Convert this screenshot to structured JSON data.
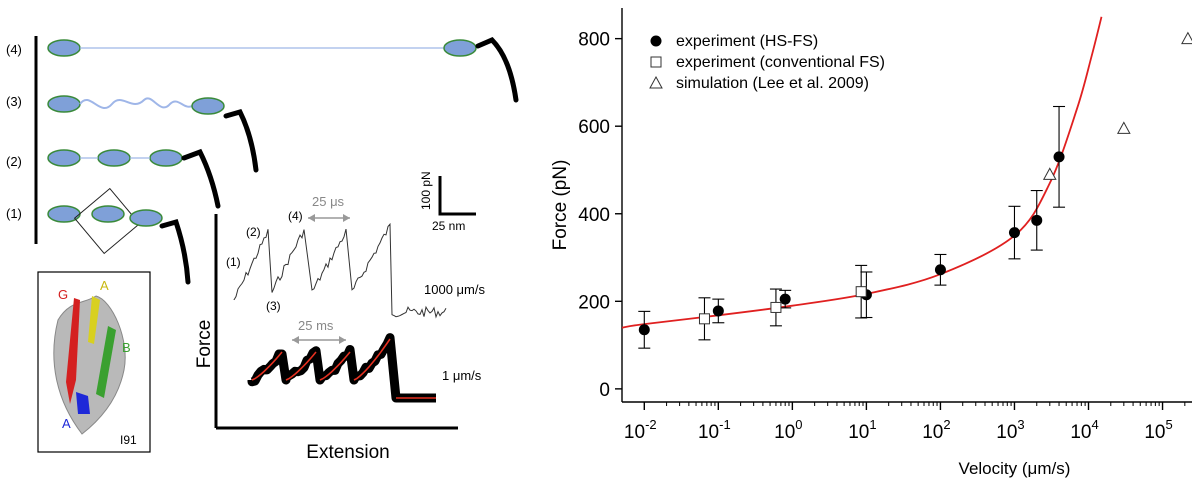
{
  "left_panel": {
    "states": [
      "(4)",
      "(3)",
      "(2)",
      "(1)"
    ],
    "structure": {
      "strand_labels": [
        "G",
        "A",
        "B",
        "A"
      ],
      "strand_colors": [
        "#d42020",
        "#d8d020",
        "#3aa030",
        "#1e28d8"
      ],
      "domain_label": "I91"
    },
    "trace": {
      "peak_labels": [
        "(1)",
        "(2)",
        "(3)",
        "(4)"
      ],
      "time_fast": "25 μs",
      "time_slow": "25 ms",
      "scale_force": "100 pN",
      "scale_distance": "25 nm",
      "speed_fast": "1000 μm/s",
      "speed_slow": "1 μm/s",
      "axis_y": "Force",
      "axis_x": "Extension"
    },
    "colors": {
      "protein": "#6a8fd0",
      "linker": "#9fb6e8",
      "fit": "#e53020",
      "trace": "#000000"
    }
  },
  "chart_data": {
    "type": "scatter",
    "xlabel": "Velocity (μm/s)",
    "ylabel": "Force (pN)",
    "x_scale": "log",
    "xlim": [
      0.005,
      250000
    ],
    "ylim": [
      -30,
      870
    ],
    "y_ticks": [
      0,
      200,
      400,
      600,
      800
    ],
    "x_ticks": [
      {
        "value": 0.01,
        "base": "10",
        "exp": "-2"
      },
      {
        "value": 0.1,
        "base": "10",
        "exp": "-1"
      },
      {
        "value": 1,
        "base": "10",
        "exp": "0"
      },
      {
        "value": 10,
        "base": "10",
        "exp": "1"
      },
      {
        "value": 100,
        "base": "10",
        "exp": "2"
      },
      {
        "value": 1000,
        "base": "10",
        "exp": "3"
      },
      {
        "value": 10000,
        "base": "10",
        "exp": "4"
      },
      {
        "value": 100000,
        "base": "10",
        "exp": "5"
      }
    ],
    "grid": false,
    "legend_position": "top-left",
    "series": [
      {
        "name": "experiment (HS-FS)",
        "marker": "filled-circle",
        "points": [
          {
            "x": 0.01,
            "y": 135,
            "err": 42
          },
          {
            "x": 0.1,
            "y": 178,
            "err": 27
          },
          {
            "x": 0.8,
            "y": 205,
            "err": 20
          },
          {
            "x": 10,
            "y": 215,
            "err": 52
          },
          {
            "x": 100,
            "y": 272,
            "err": 35
          },
          {
            "x": 1000,
            "y": 357,
            "err": 60
          },
          {
            "x": 2000,
            "y": 385,
            "err": 68
          },
          {
            "x": 4000,
            "y": 530,
            "err": 115
          }
        ]
      },
      {
        "name": "experiment (conventional FS)",
        "marker": "open-square",
        "points": [
          {
            "x": 0.065,
            "y": 160,
            "err": 48
          },
          {
            "x": 0.6,
            "y": 186,
            "err": 42
          },
          {
            "x": 8.5,
            "y": 222,
            "err": 60
          }
        ]
      },
      {
        "name": "simulation (Lee et al. 2009)",
        "marker": "open-triangle",
        "points": [
          {
            "x": 3000,
            "y": 490
          },
          {
            "x": 30000,
            "y": 595
          },
          {
            "x": 220000,
            "y": 800
          }
        ]
      }
    ],
    "fit": {
      "color": "#e02020",
      "points": [
        {
          "x": 0.005,
          "y": 140
        },
        {
          "x": 0.01,
          "y": 148
        },
        {
          "x": 0.1,
          "y": 168
        },
        {
          "x": 1,
          "y": 190
        },
        {
          "x": 10,
          "y": 217
        },
        {
          "x": 100,
          "y": 262
        },
        {
          "x": 1000,
          "y": 350
        },
        {
          "x": 3000,
          "y": 470
        },
        {
          "x": 7000,
          "y": 640
        },
        {
          "x": 11000,
          "y": 760
        },
        {
          "x": 15000,
          "y": 850
        }
      ]
    }
  }
}
